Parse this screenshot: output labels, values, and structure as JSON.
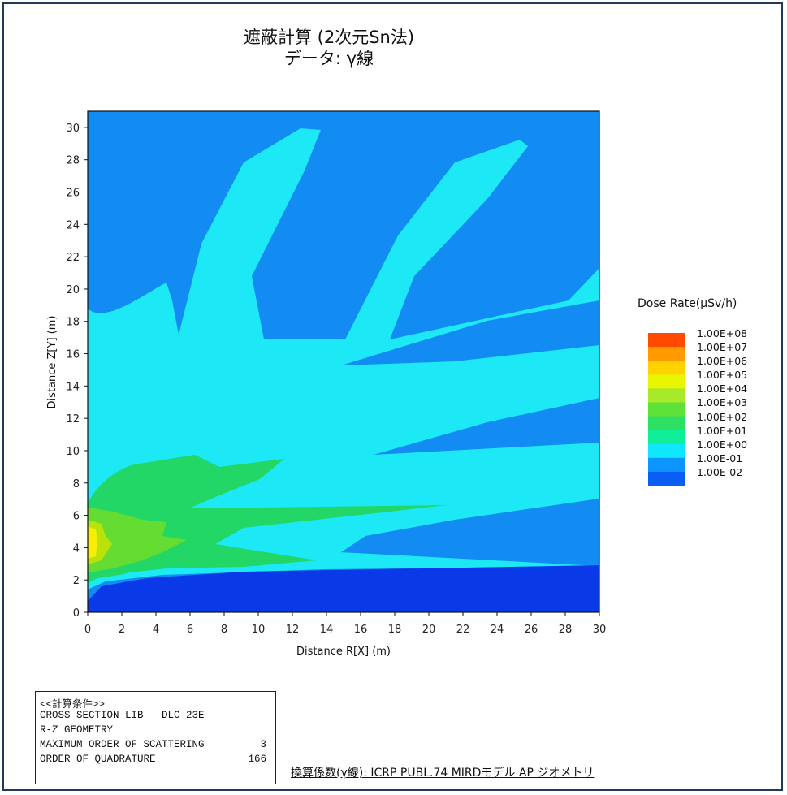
{
  "chart_data": {
    "type": "heatmap",
    "title": "遮蔽計算 (2次元Sn法)",
    "subtitle": "データ: γ線",
    "xlabel": "Distance R[X] (m)",
    "ylabel": "Distance Z[Y] (m)",
    "xlim": [
      0,
      30
    ],
    "ylim": [
      0,
      31
    ],
    "x_ticks": [
      "0",
      "2",
      "4",
      "6",
      "8",
      "10",
      "12",
      "14",
      "16",
      "18",
      "20",
      "22",
      "24",
      "26",
      "28",
      "30"
    ],
    "y_ticks": [
      "0",
      "2",
      "4",
      "6",
      "8",
      "10",
      "12",
      "14",
      "16",
      "18",
      "20",
      "22",
      "24",
      "26",
      "28",
      "30"
    ],
    "legend_title": "Dose Rate(μSv/h)",
    "legend_levels": [
      "1.00E+08",
      "1.00E+07",
      "1.00E+06",
      "1.00E+05",
      "1.00E+04",
      "1.00E+03",
      "1.00E+02",
      "1.00E+01",
      "1.00E+00",
      "1.00E-01",
      "1.00E-02"
    ],
    "legend_colors": [
      "#ff4a00",
      "#ff9a00",
      "#ffd200",
      "#e8f500",
      "#a8ea2a",
      "#5ee23a",
      "#2ee062",
      "#10ee9a",
      "#10e7ff",
      "#0d95ff",
      "#0a5ef5"
    ],
    "band_colors": {
      "dark_blue": "#0a39e8",
      "blue": "#128bf2",
      "cyan": "#1ce8f6",
      "green": "#22d766",
      "light_green": "#64dc32",
      "yellow_green": "#b8e20a",
      "yellow": "#f8ee00"
    },
    "regions": {
      "bottom_band_z_max": 3.0,
      "source_z_center": 4.0
    }
  },
  "conditions": {
    "header": "<<計算条件>>",
    "lines": [
      {
        "label": "CROSS SECTION LIB   DLC-23E",
        "value": ""
      },
      {
        "label": "R-Z GEOMETRY",
        "value": ""
      },
      {
        "label": "MAXIMUM ORDER OF SCATTERING",
        "value": "3"
      },
      {
        "label": "ORDER OF QUADRATURE",
        "value": "166"
      }
    ]
  },
  "footnote": "換算係数(γ線): ICRP PUBL.74 MIRDモデル AP ジオメトリ"
}
